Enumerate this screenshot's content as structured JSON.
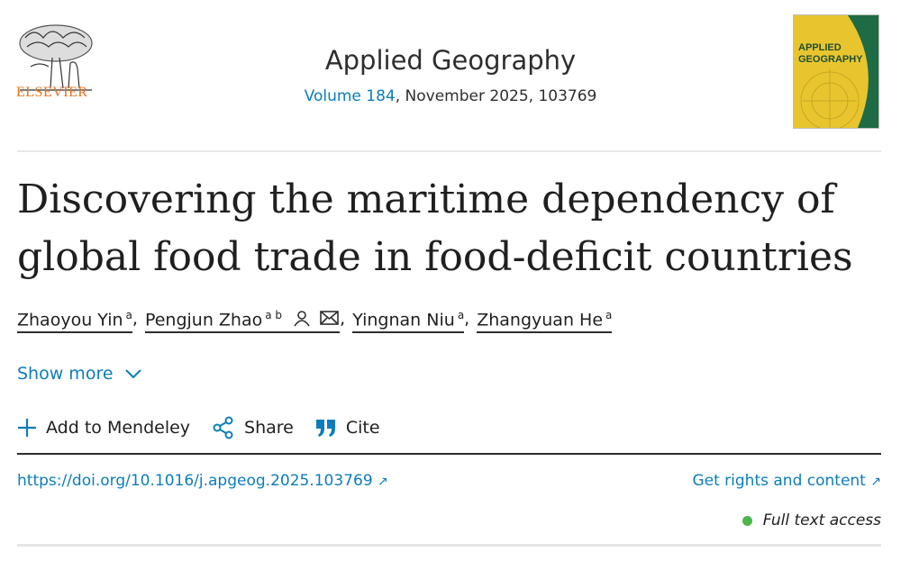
{
  "publisher": {
    "logo_text": "ELSEVIER",
    "logo_color": "#e9711c"
  },
  "journal": {
    "name": "Applied Geography",
    "volume_link": "Volume 184",
    "issue_rest": ", November 2025, 103769",
    "cover_text": [
      "APPLIED",
      "GEOGRAPHY"
    ]
  },
  "article": {
    "title_line1": "Discovering the maritime dependency of",
    "title_line2": "global food trade in food-deficit countries",
    "authors": [
      {
        "name": "Zhaoyou Yin",
        "sup": "a"
      },
      {
        "name": "Pengjun Zhao",
        "sup": "a b",
        "icons": [
          "person-icon",
          "envelope-icon"
        ]
      },
      {
        "name": "Yingnan Niu",
        "sup": "a"
      },
      {
        "name": "Zhangyuan He",
        "sup": "a"
      }
    ],
    "separator": ","
  },
  "show_more": "Show more",
  "actions": {
    "mendeley": "Add to Mendeley",
    "share": "Share",
    "cite": "Cite"
  },
  "doi": "https://doi.org/10.1016/j.apgeog.2025.103769",
  "rights": "Get rights and content",
  "external_arrow": "↗",
  "access": "Full text access",
  "colors": {
    "link": "#0c7dbb",
    "access_dot": "#4db74a",
    "cover_yellow": "#e8c52f",
    "cover_green": "#1e6b45"
  }
}
